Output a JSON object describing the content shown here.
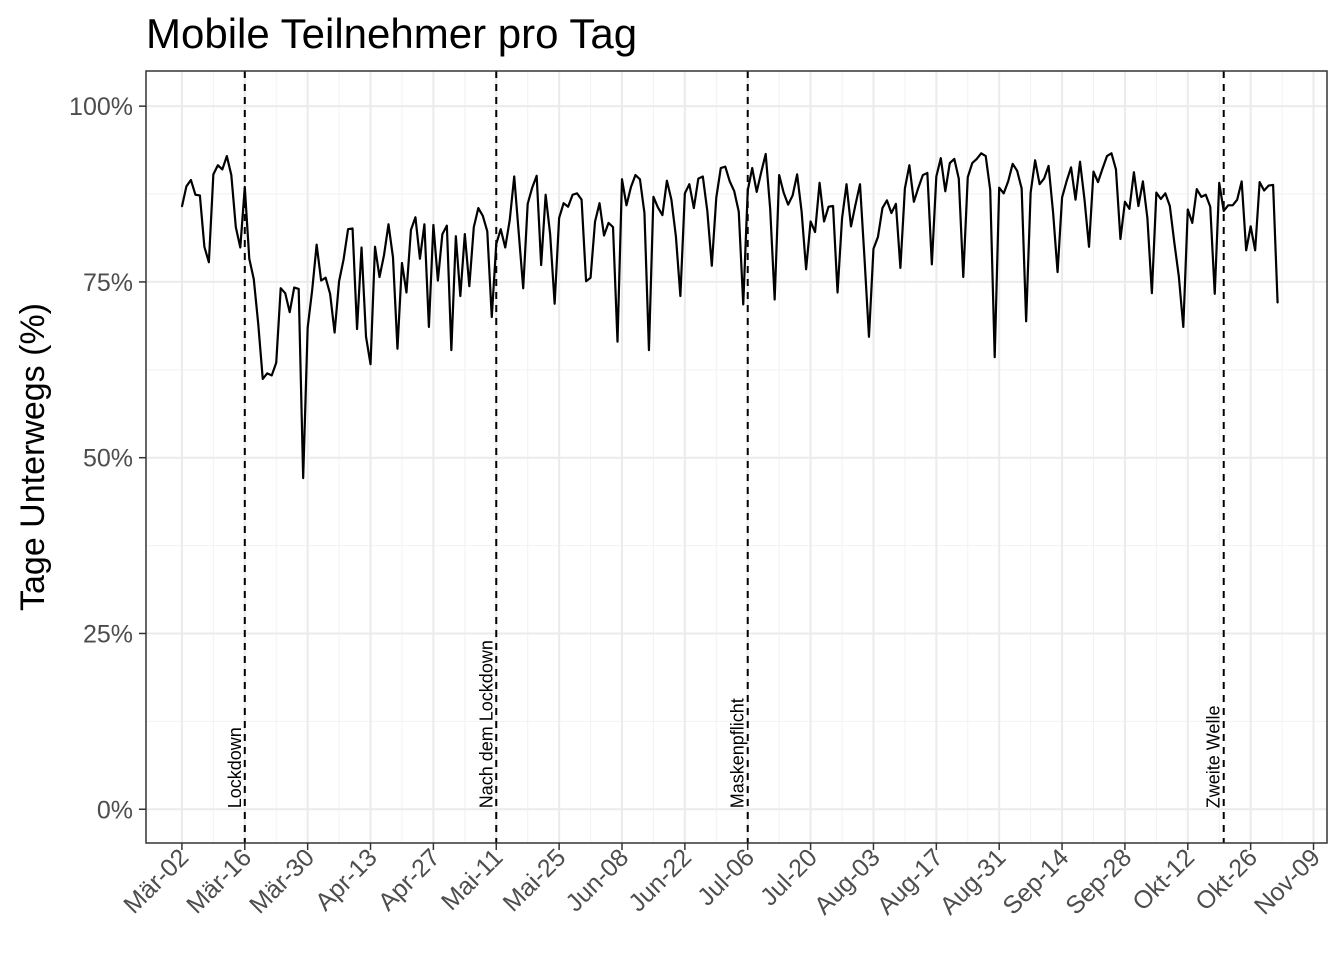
{
  "chart_data": {
    "type": "line",
    "title": "Mobile Teilnehmer pro Tag",
    "xlabel": "",
    "ylabel": "Tage Unterwegs (%)",
    "x_start": "2020-03-02",
    "x_end": "2020-11-04",
    "xlim": [
      "2020-02-23",
      "2020-11-12"
    ],
    "ylim": [
      -0.048,
      1.05
    ],
    "x_ticks": [
      "Mär-02",
      "Mär-16",
      "Mär-30",
      "Apr-13",
      "Apr-27",
      "Mai-11",
      "Mai-25",
      "Jun-08",
      "Jun-22",
      "Jul-06",
      "Jul-20",
      "Aug-03",
      "Aug-17",
      "Aug-31",
      "Sep-14",
      "Sep-28",
      "Okt-12",
      "Okt-26",
      "Nov-09"
    ],
    "y_ticks": [
      {
        "value": 0,
        "label": "0%"
      },
      {
        "value": 0.25,
        "label": "25%"
      },
      {
        "value": 0.5,
        "label": "50%"
      },
      {
        "value": 0.75,
        "label": "75%"
      },
      {
        "value": 1.0,
        "label": "100%"
      }
    ],
    "grid": true,
    "series": [
      {
        "values": [
          0.857,
          0.886,
          0.895,
          0.874,
          0.873,
          0.8,
          0.778,
          0.903,
          0.916,
          0.91,
          0.929,
          0.902,
          0.828,
          0.799,
          0.885,
          0.783,
          0.754,
          0.69,
          0.612,
          0.62,
          0.617,
          0.635,
          0.741,
          0.734,
          0.707,
          0.742,
          0.74,
          0.471,
          0.685,
          0.738,
          0.803,
          0.752,
          0.756,
          0.733,
          0.678,
          0.751,
          0.782,
          0.825,
          0.826,
          0.683,
          0.799,
          0.672,
          0.633,
          0.8,
          0.757,
          0.788,
          0.832,
          0.785,
          0.655,
          0.777,
          0.735,
          0.824,
          0.842,
          0.783,
          0.832,
          0.686,
          0.831,
          0.752,
          0.818,
          0.83,
          0.653,
          0.815,
          0.73,
          0.818,
          0.744,
          0.828,
          0.855,
          0.844,
          0.822,
          0.7,
          0.804,
          0.825,
          0.799,
          0.838,
          0.9,
          0.82,
          0.741,
          0.861,
          0.884,
          0.901,
          0.774,
          0.874,
          0.818,
          0.719,
          0.841,
          0.862,
          0.857,
          0.874,
          0.876,
          0.867,
          0.751,
          0.756,
          0.836,
          0.862,
          0.816,
          0.834,
          0.828,
          0.665,
          0.896,
          0.859,
          0.885,
          0.902,
          0.896,
          0.848,
          0.653,
          0.871,
          0.856,
          0.845,
          0.894,
          0.867,
          0.815,
          0.73,
          0.876,
          0.889,
          0.855,
          0.897,
          0.9,
          0.851,
          0.773,
          0.87,
          0.912,
          0.914,
          0.893,
          0.879,
          0.85,
          0.718,
          0.88,
          0.912,
          0.878,
          0.906,
          0.932,
          0.854,
          0.725,
          0.902,
          0.877,
          0.86,
          0.873,
          0.903,
          0.85,
          0.768,
          0.836,
          0.821,
          0.891,
          0.836,
          0.857,
          0.858,
          0.735,
          0.84,
          0.889,
          0.829,
          0.86,
          0.889,
          0.784,
          0.672,
          0.797,
          0.814,
          0.855,
          0.866,
          0.848,
          0.861,
          0.77,
          0.883,
          0.916,
          0.864,
          0.884,
          0.902,
          0.905,
          0.775,
          0.9,
          0.926,
          0.879,
          0.919,
          0.925,
          0.897,
          0.757,
          0.899,
          0.919,
          0.925,
          0.933,
          0.929,
          0.881,
          0.643,
          0.884,
          0.876,
          0.893,
          0.918,
          0.908,
          0.883,
          0.694,
          0.877,
          0.923,
          0.889,
          0.897,
          0.915,
          0.849,
          0.764,
          0.87,
          0.893,
          0.913,
          0.867,
          0.921,
          0.867,
          0.8,
          0.907,
          0.892,
          0.911,
          0.929,
          0.933,
          0.91,
          0.811,
          0.864,
          0.854,
          0.906,
          0.858,
          0.893,
          0.841,
          0.734,
          0.877,
          0.868,
          0.876,
          0.858,
          0.806,
          0.758,
          0.686,
          0.853,
          0.834,
          0.882,
          0.871,
          0.874,
          0.857,
          0.733,
          0.891,
          0.851,
          0.859,
          0.859,
          0.867,
          0.893,
          0.795,
          0.829,
          0.795,
          0.892,
          0.88,
          0.887,
          0.888,
          0.72
        ]
      }
    ],
    "events": [
      {
        "date": "2020-03-16",
        "label": "Lockdown"
      },
      {
        "date": "2020-05-11",
        "label": "Nach dem Lockdown"
      },
      {
        "date": "2020-07-06",
        "label": "Maskenpflicht"
      },
      {
        "date": "2020-10-20",
        "label": "Zweite Welle"
      }
    ],
    "colors": {
      "line": "#000000",
      "grid_major": "#ebebeb",
      "grid_minor": "#f2f2f2",
      "tick_text": "#4d4d4d",
      "panel_border": "#333333"
    }
  }
}
